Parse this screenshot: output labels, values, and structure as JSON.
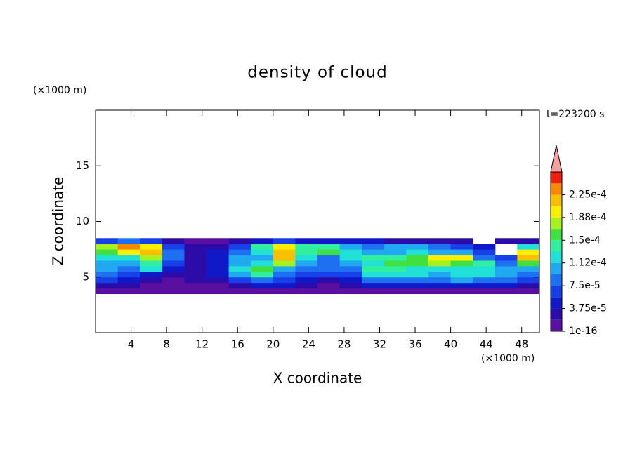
{
  "chart_data": {
    "type": "contour",
    "title": "density of cloud",
    "x_unit": "(×1000 m)",
    "y_unit": "(×1000 m)",
    "annotation": "t=223200 s",
    "xlabel": "X coordinate",
    "ylabel": "Z coordinate",
    "xlim": [
      0,
      50
    ],
    "ylim": [
      0,
      20
    ],
    "xticks": [
      4,
      8,
      12,
      16,
      20,
      24,
      28,
      32,
      36,
      40,
      44,
      48
    ],
    "yticks": [
      5,
      10,
      15
    ],
    "x": [
      1.25,
      3.75,
      6.25,
      8.75,
      11.25,
      13.75,
      16.25,
      18.75,
      21.25,
      23.75,
      26.25,
      28.75,
      31.25,
      33.75,
      36.25,
      38.75,
      41.25,
      43.75,
      46.25,
      48.75
    ],
    "y": [
      3.75,
      4.25,
      4.75,
      5.25,
      5.75,
      6.25,
      6.75,
      7.25,
      7.75,
      8.25
    ],
    "z": [
      [
        9e-06,
        9e-06,
        9e-06,
        9e-06,
        9e-06,
        9e-06,
        9e-06,
        9e-06,
        9e-06,
        9e-06,
        9e-06,
        9e-06,
        9e-06,
        9e-06,
        9e-06,
        9e-06,
        9e-06,
        9e-06,
        9e-06,
        9e-06
      ],
      [
        2.8e-05,
        2.8e-05,
        9e-06,
        9e-06,
        9e-06,
        9e-06,
        2.8e-05,
        4.7e-05,
        4.7e-05,
        2.8e-05,
        9e-06,
        2.8e-05,
        4.7e-05,
        4.7e-05,
        4.7e-05,
        4.7e-05,
        4.7e-05,
        4.7e-05,
        4.7e-05,
        2.8e-05
      ],
      [
        6.6e-05,
        4.7e-05,
        2.8e-05,
        9e-06,
        2.8e-05,
        2.8e-05,
        6.6e-05,
        8.4e-05,
        6.6e-05,
        4.7e-05,
        2.8e-05,
        4.7e-05,
        8.4e-05,
        8.4e-05,
        8.4e-05,
        8.4e-05,
        0.000103,
        8.4e-05,
        8.4e-05,
        6.6e-05
      ],
      [
        8.4e-05,
        6.6e-05,
        4.7e-05,
        2.8e-05,
        2.8e-05,
        4.7e-05,
        0.000103,
        0.000141,
        8.4e-05,
        6.6e-05,
        6.6e-05,
        6.6e-05,
        0.000122,
        0.000122,
        0.000122,
        0.000103,
        0.000122,
        0.000122,
        0.000103,
        8.4e-05
      ],
      [
        0.000103,
        8.4e-05,
        0.000122,
        4.7e-05,
        2.8e-05,
        4.7e-05,
        0.000122,
        0.000159,
        0.000103,
        8.4e-05,
        8.4e-05,
        8.4e-05,
        0.000141,
        0.000141,
        0.000122,
        0.000122,
        0.000122,
        0.000122,
        0.000103,
        0.000103
      ],
      [
        0.000103,
        0.000103,
        0.000141,
        6.6e-05,
        2.8e-05,
        4.7e-05,
        0.000103,
        0.000122,
        0.000178,
        0.000103,
        8.4e-05,
        0.000103,
        0.000122,
        0.000159,
        0.000159,
        0.000178,
        0.000159,
        0.000141,
        8.4e-05,
        0.000159
      ],
      [
        0.000122,
        0.000122,
        0.000178,
        8.4e-05,
        2.8e-05,
        4.7e-05,
        0.000103,
        0.000103,
        0.000216,
        0.000122,
        8.4e-05,
        0.000122,
        0.000141,
        0.000141,
        0.000159,
        0.000197,
        0.000197,
        8.4e-05,
        6.6e-05,
        0.000216
      ],
      [
        0.000159,
        0.000197,
        0.000216,
        8.4e-05,
        2.8e-05,
        4.7e-05,
        8.4e-05,
        0.000122,
        0.000216,
        0.000141,
        0.000159,
        0.000122,
        0.000103,
        0.000103,
        0.000122,
        0.000103,
        0.000103,
        6.6e-05,
        null,
        0.000197
      ],
      [
        0.000178,
        0.000234,
        0.000197,
        6.6e-05,
        2.8e-05,
        2.8e-05,
        6.6e-05,
        0.000141,
        0.000197,
        0.000141,
        0.000141,
        0.000103,
        8.4e-05,
        0.000103,
        0.000103,
        8.4e-05,
        6.6e-05,
        4.7e-05,
        null,
        0.000122
      ],
      [
        6.6e-05,
        8.4e-05,
        6.6e-05,
        2.8e-05,
        9e-06,
        9e-06,
        2.8e-05,
        4.7e-05,
        6.6e-05,
        4.7e-05,
        4.7e-05,
        4.7e-05,
        4.7e-05,
        2.8e-05,
        2.8e-05,
        2.8e-05,
        2.8e-05,
        null,
        2.8e-05,
        2.8e-05
      ]
    ],
    "levels": [
      1e-16,
      1.875e-05,
      3.75e-05,
      5.625e-05,
      7.5e-05,
      9.375e-05,
      0.0001125,
      0.00013125,
      0.00015,
      0.00016875,
      0.0001875,
      0.00020625,
      0.000225,
      0.00024375,
      0.0002625
    ],
    "colors": [
      "#5a0fa0",
      "#2c0ca8",
      "#1018c8",
      "#1840e8",
      "#1e70f0",
      "#20a8f0",
      "#20e0d8",
      "#30f0a0",
      "#40e040",
      "#a8f020",
      "#f8f000",
      "#f8c000",
      "#f88800",
      "#f02010"
    ],
    "extend_color": "#f4a0a0",
    "colorbar_ticks": [
      {
        "value": 1e-16,
        "label": "1e-16"
      },
      {
        "value": 3.75e-05,
        "label": "3.75e-5"
      },
      {
        "value": 7.5e-05,
        "label": "7.5e-5"
      },
      {
        "value": 0.0001125,
        "label": "1.12e-4"
      },
      {
        "value": 0.00015,
        "label": "1.5e-4"
      },
      {
        "value": 0.0001875,
        "label": "1.88e-4"
      },
      {
        "value": 0.000225,
        "label": "2.25e-4"
      }
    ]
  }
}
